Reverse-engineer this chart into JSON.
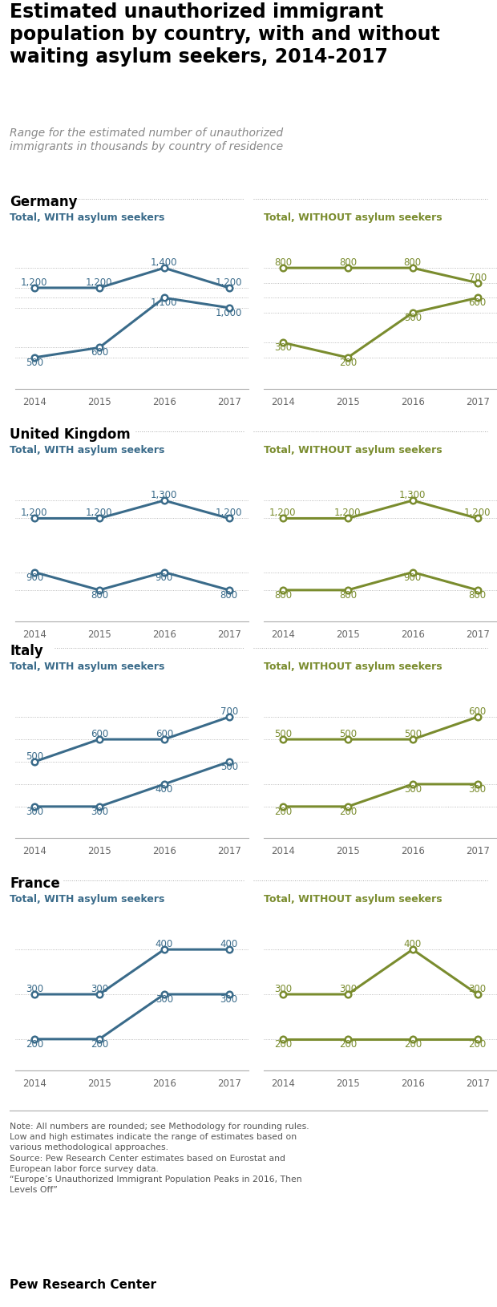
{
  "title": "Estimated unauthorized immigrant\npopulation by country, with and without\nwaiting asylum seekers, 2014-2017",
  "subtitle": "Range for the estimated number of unauthorized\nimmigrants in thousands by country of residence",
  "years": [
    2014,
    2015,
    2016,
    2017
  ],
  "countries": [
    "Germany",
    "United Kingdom",
    "Italy",
    "France"
  ],
  "blue_color": "#3a6b8a",
  "green_color": "#7a8c2e",
  "with_label": "Total, WITH asylum seekers",
  "without_label": "Total, WITHOUT asylum seekers",
  "data": {
    "Germany": {
      "with_high": [
        1200,
        1200,
        1400,
        1200
      ],
      "with_low": [
        500,
        600,
        1100,
        1000
      ],
      "without_high": [
        800,
        800,
        800,
        700
      ],
      "without_low": [
        300,
        200,
        500,
        600
      ]
    },
    "United Kingdom": {
      "with_high": [
        1200,
        1200,
        1300,
        1200
      ],
      "with_low": [
        900,
        800,
        900,
        800
      ],
      "without_high": [
        1200,
        1200,
        1300,
        1200
      ],
      "without_low": [
        800,
        800,
        900,
        800
      ]
    },
    "Italy": {
      "with_high": [
        500,
        600,
        600,
        700
      ],
      "with_low": [
        300,
        300,
        400,
        500
      ],
      "without_high": [
        500,
        500,
        500,
        600
      ],
      "without_low": [
        200,
        200,
        300,
        300
      ]
    },
    "France": {
      "with_high": [
        300,
        300,
        400,
        400
      ],
      "with_low": [
        200,
        200,
        300,
        300
      ],
      "without_high": [
        300,
        300,
        400,
        300
      ],
      "without_low": [
        200,
        200,
        200,
        200
      ]
    }
  },
  "note": "Note: All numbers are rounded; see Methodology for rounding rules.\nLow and high estimates indicate the range of estimates based on\nvarious methodological approaches.",
  "source": "Source: Pew Research Center estimates based on Eurostat and\nEuropean labor force survey data.",
  "quote": "“Europe’s Unauthorized Immigrant Population Peaks in 2016, Then\nLevels Off”",
  "pew": "Pew Research Center"
}
